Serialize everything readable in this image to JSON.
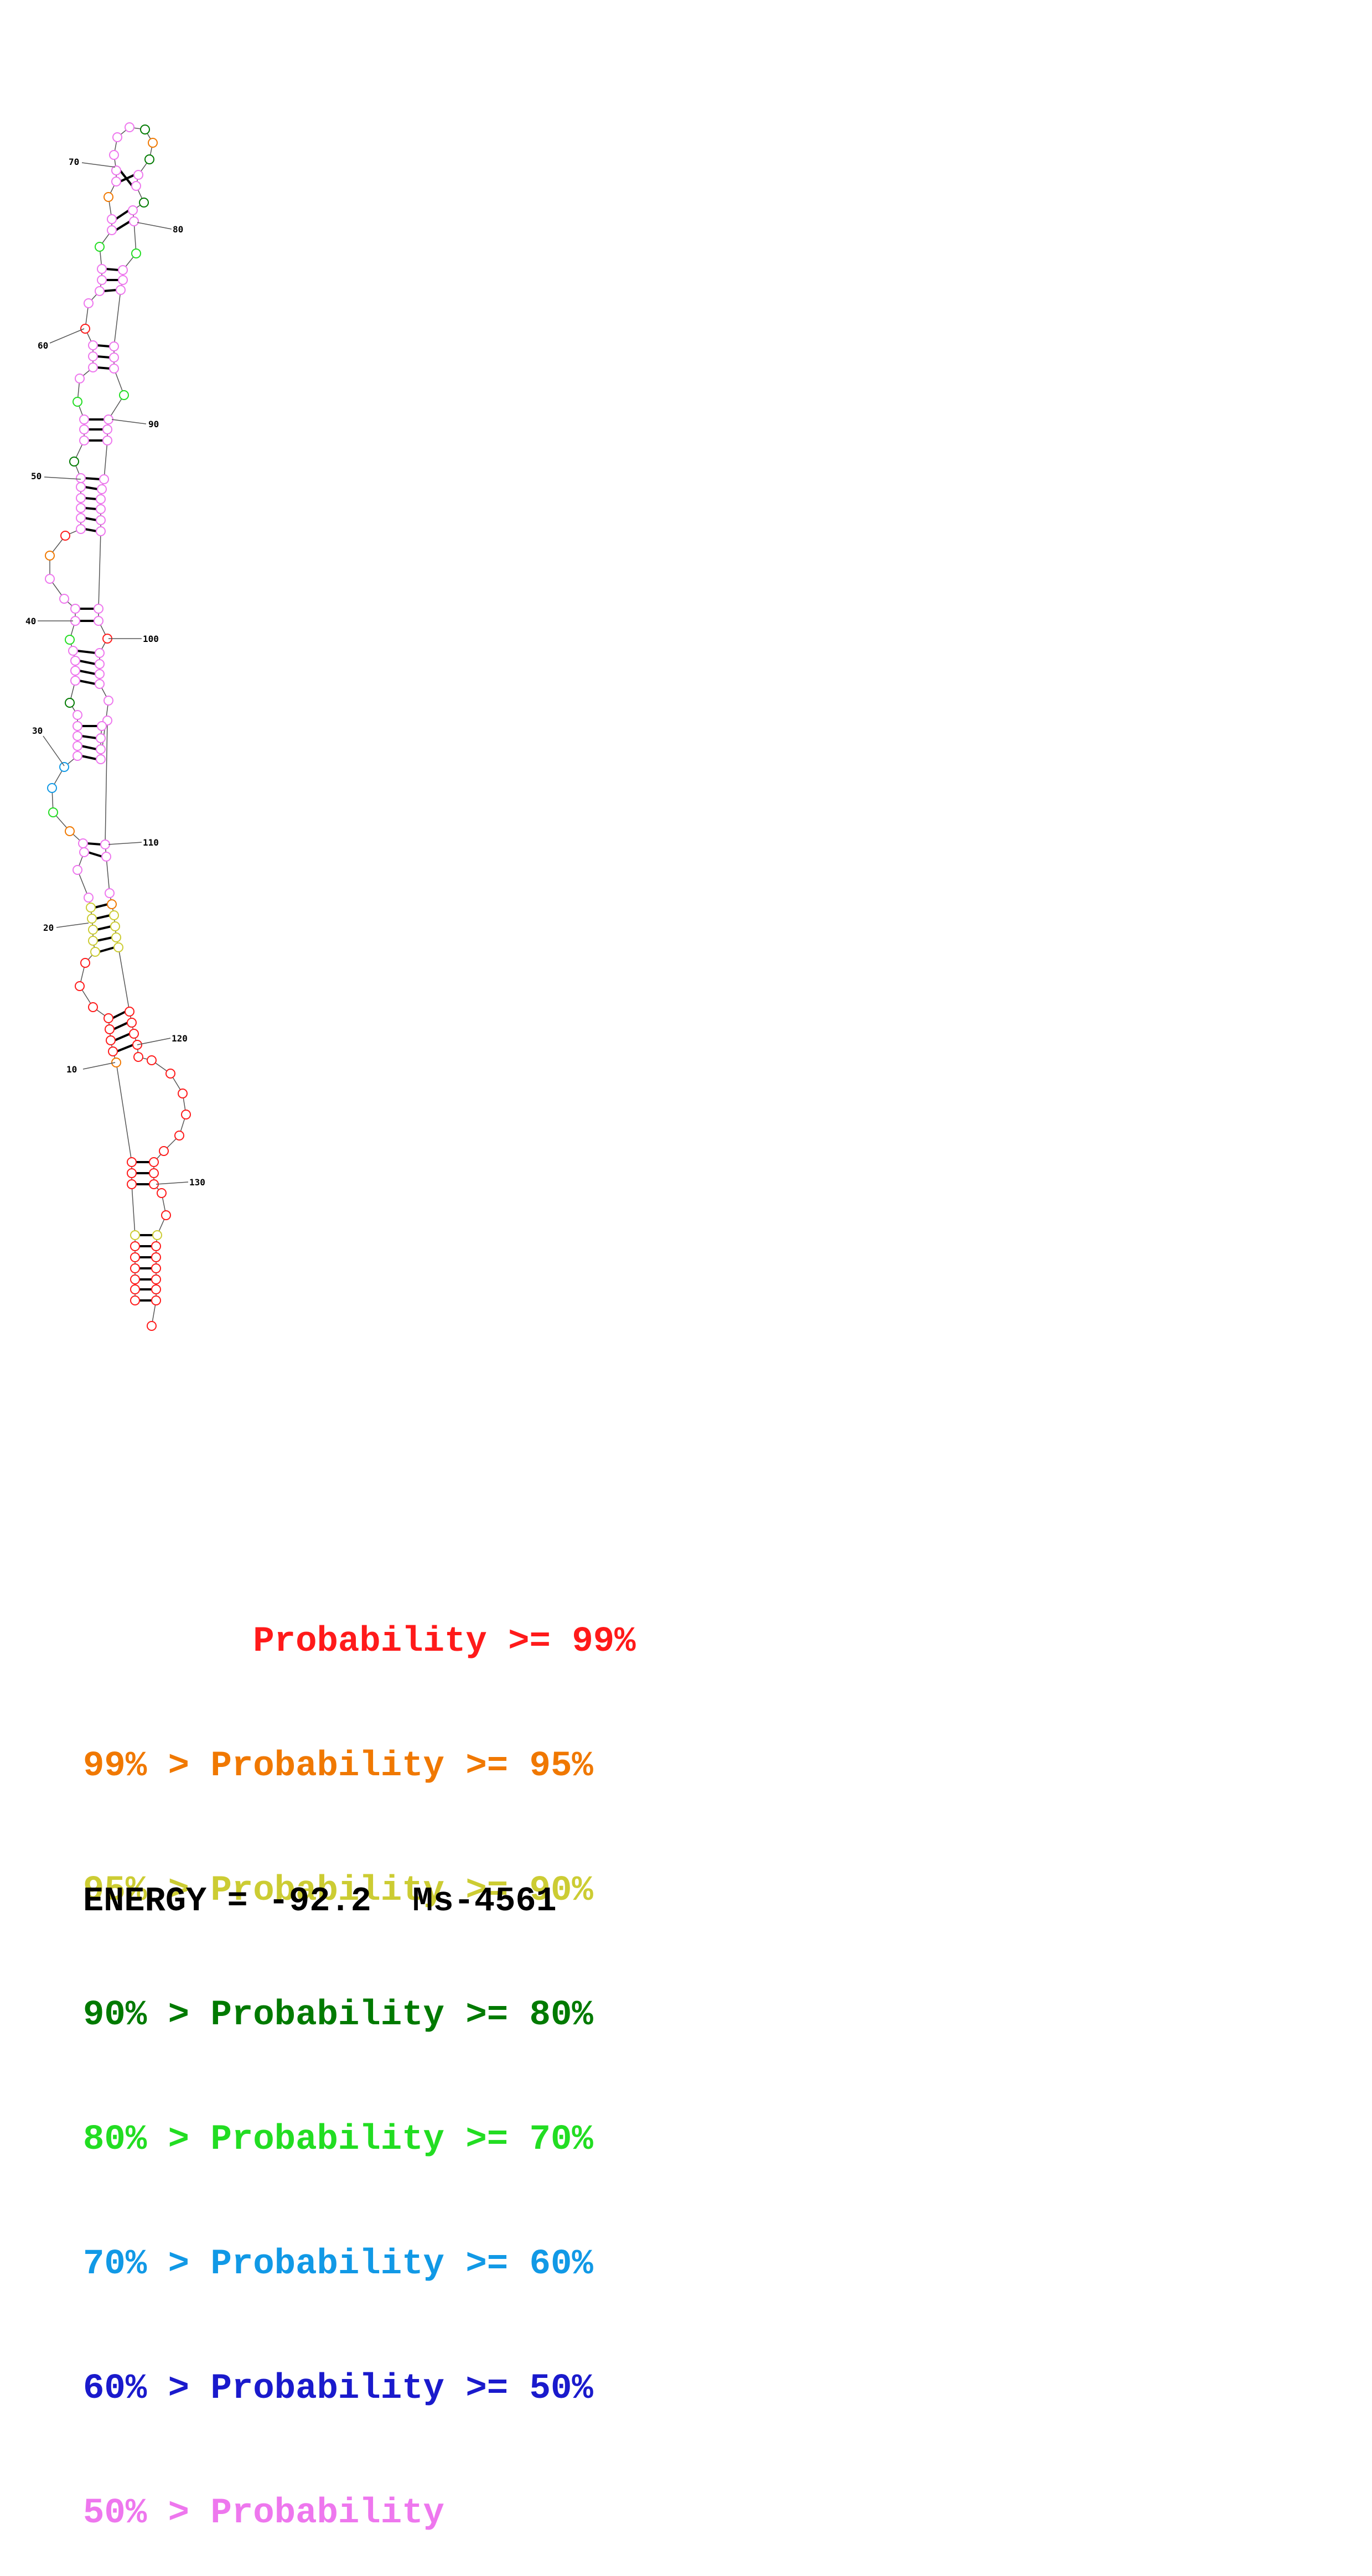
{
  "colors": {
    "p99": "#ff1a1a",
    "p95": "#f07800",
    "p90": "#cccc33",
    "p80": "#007a00",
    "p70": "#22dd22",
    "p60": "#1199e6",
    "p50": "#1a1acc",
    "p0": "#ee77ee"
  },
  "legend": [
    {
      "text": "        Probability >= 99%",
      "color_key": "p99"
    },
    {
      "text": "99% > Probability >= 95%",
      "color_key": "p95"
    },
    {
      "text": "95% > Probability >= 90%",
      "color_key": "p90"
    },
    {
      "text": "90% > Probability >= 80%",
      "color_key": "p80"
    },
    {
      "text": "80% > Probability >= 70%",
      "color_key": "p70"
    },
    {
      "text": "70% > Probability >= 60%",
      "color_key": "p60"
    },
    {
      "text": "60% > Probability >= 50%",
      "color_key": "p50"
    },
    {
      "text": "50% > Probability",
      "color_key": "p0"
    }
  ],
  "footer": {
    "energy": "ENERGY = -92.2  Ms-4561"
  },
  "position_labels": [
    "10",
    "20",
    "30",
    "40",
    "50",
    "60",
    "70",
    "80",
    "90",
    "100",
    "110",
    "120",
    "130"
  ]
}
